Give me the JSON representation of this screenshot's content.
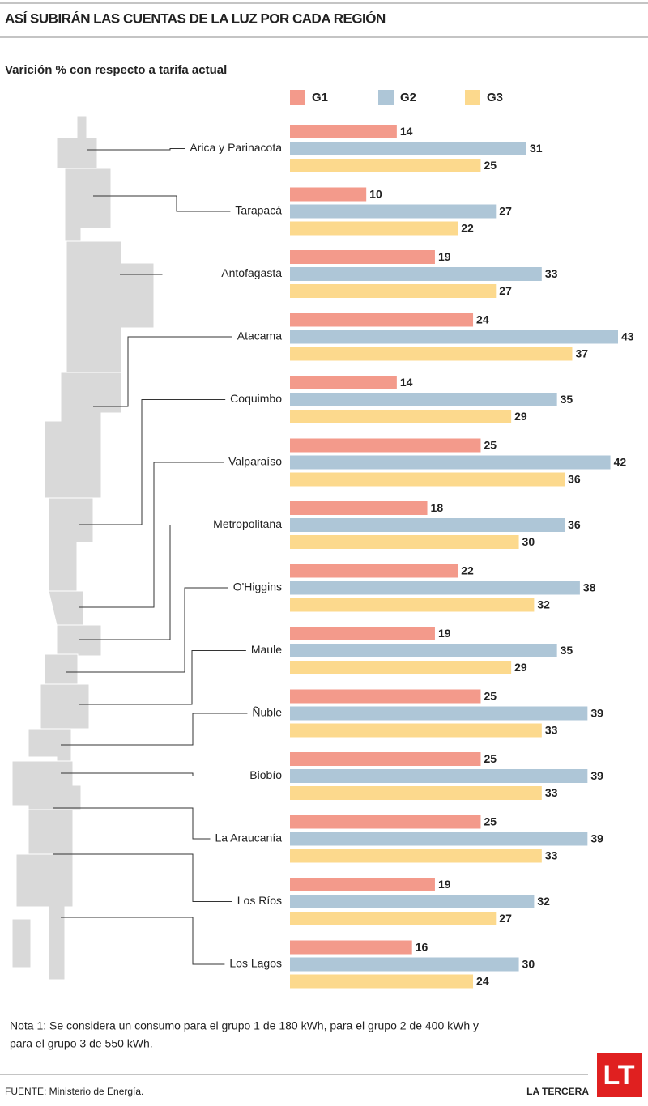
{
  "chart_data": {
    "type": "bar",
    "orientation": "horizontal",
    "title": "ASÍ SUBIRÁN LAS CUENTAS DE LA LUZ POR CADA REGIÓN",
    "subtitle": "Varición % con respecto a tarifa actual",
    "categories": [
      "Arica y Parinacota",
      "Tarapacá",
      "Antofagasta",
      "Atacama",
      "Coquimbo",
      "Valparaíso",
      "Metropolitana",
      "O'Higgins",
      "Maule",
      "Ñuble",
      "Biobío",
      "La Araucanía",
      "Los Ríos",
      "Los Lagos"
    ],
    "series": [
      {
        "name": "G1",
        "color": "#f39a8b",
        "values": [
          14,
          10,
          19,
          24,
          14,
          25,
          18,
          22,
          19,
          25,
          25,
          25,
          19,
          16
        ]
      },
      {
        "name": "G2",
        "color": "#aec6d7",
        "values": [
          31,
          27,
          33,
          43,
          35,
          42,
          36,
          38,
          35,
          39,
          39,
          39,
          32,
          30
        ]
      },
      {
        "name": "G3",
        "color": "#fcd98d",
        "values": [
          25,
          22,
          27,
          37,
          29,
          36,
          30,
          32,
          29,
          33,
          33,
          33,
          27,
          24
        ]
      }
    ],
    "note": [
      "Nota 1: Se considera un consumo para el grupo 1 de 180 kWh, para el grupo 2 de 400 kWh y",
      "para el grupo 3 de 550 kWh."
    ],
    "source": "FUENTE: Ministerio de Energía.",
    "publisher": "LA TERCERA",
    "logo": "LT"
  }
}
